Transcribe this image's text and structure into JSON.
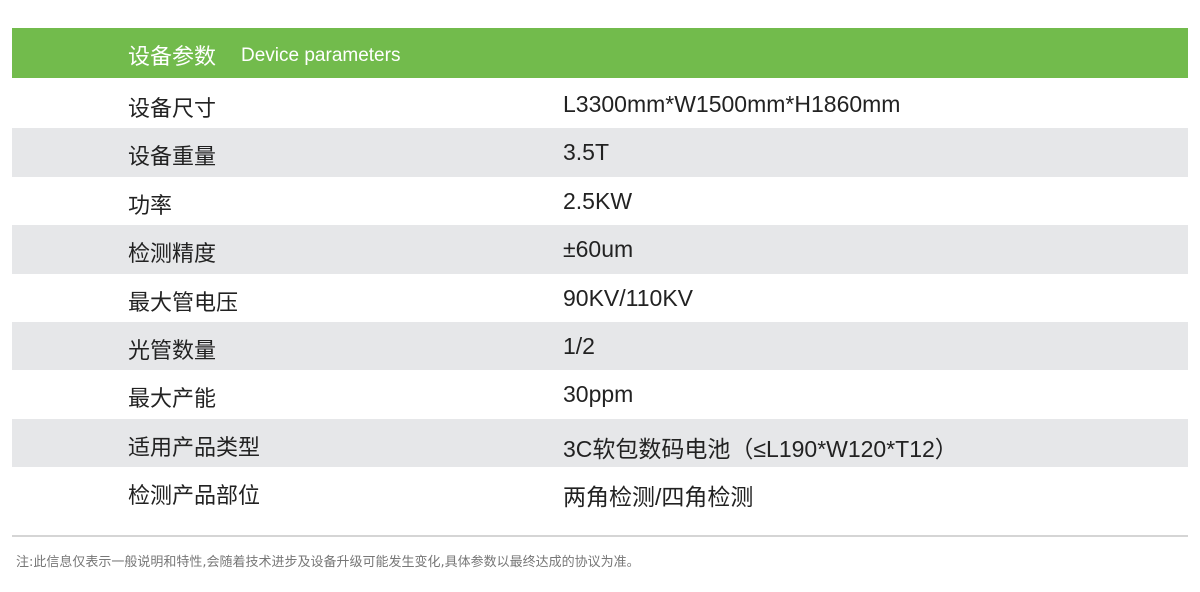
{
  "header": {
    "title_zh": "设备参数",
    "title_en": "Device parameters",
    "color": "#72bb4c"
  },
  "rows": [
    {
      "label": "设备尺寸",
      "value": "L3300mm*W1500mm*H1860mm"
    },
    {
      "label": "设备重量",
      "value": "3.5T"
    },
    {
      "label": "功率",
      "value": "2.5KW"
    },
    {
      "label": "检测精度",
      "value": "±60um"
    },
    {
      "label": "最大管电压",
      "value": "90KV/110KV"
    },
    {
      "label": "光管数量",
      "value": "1/2"
    },
    {
      "label": "最大产能",
      "value": "30ppm"
    },
    {
      "label": "适用产品类型",
      "value": "3C软包数码电池（≤L190*W120*T12）"
    },
    {
      "label": "检测产品部位",
      "value": "两角检测/四角检测"
    }
  ],
  "note": "注:此信息仅表示一般说明和特性,会随着技术进步及设备升级可能发生变化,具体参数以最终达成的协议为准。"
}
